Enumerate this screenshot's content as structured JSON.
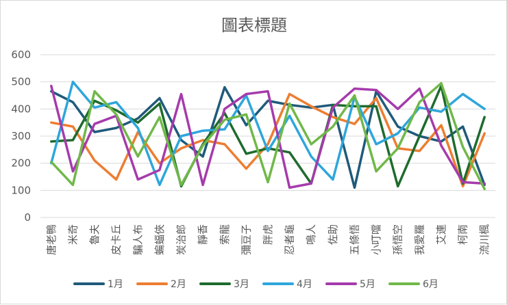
{
  "chart_data": {
    "type": "line",
    "title": "圖表標題",
    "xlabel": "",
    "ylabel": "",
    "ylim": [
      0,
      600
    ],
    "yticks": [
      0,
      100,
      200,
      300,
      400,
      500,
      600
    ],
    "grid": true,
    "legend_position": "bottom",
    "categories": [
      "唐老鴨",
      "米奇",
      "魯夫",
      "皮卡丘",
      "騙人布",
      "蝙蝠俠",
      "炭治郎",
      "靜香",
      "索龍",
      "彌豆子",
      "胖虎",
      "忍者龜",
      "鳴人",
      "佐助",
      "五條悟",
      "小叮噹",
      "孫悟空",
      "我愛羅",
      "艾連",
      "柯南",
      "流川楓"
    ],
    "series": [
      {
        "name": "1月",
        "color": "#1f5a7a",
        "values": [
          465,
          425,
          315,
          330,
          365,
          440,
          285,
          225,
          480,
          340,
          430,
          415,
          405,
          415,
          110,
          465,
          335,
          300,
          280,
          335,
          120
        ]
      },
      {
        "name": "2月",
        "color": "#ed7d31",
        "values": [
          350,
          335,
          210,
          140,
          315,
          200,
          255,
          285,
          270,
          180,
          270,
          455,
          410,
          370,
          345,
          440,
          255,
          245,
          340,
          115,
          310
        ]
      },
      {
        "name": "3月",
        "color": "#1e6b2e",
        "values": [
          280,
          285,
          430,
          395,
          350,
          420,
          115,
          270,
          385,
          235,
          255,
          240,
          125,
          415,
          410,
          410,
          115,
          300,
          485,
          125,
          370
        ]
      },
      {
        "name": "4月",
        "color": "#2ea6db",
        "values": [
          200,
          500,
          405,
          425,
          330,
          120,
          300,
          320,
          325,
          450,
          245,
          375,
          225,
          140,
          445,
          270,
          310,
          405,
          390,
          455,
          400
        ]
      },
      {
        "name": "5月",
        "color": "#a53bac",
        "values": [
          485,
          170,
          345,
          375,
          140,
          175,
          455,
          120,
          400,
          455,
          465,
          110,
          125,
          405,
          475,
          470,
          400,
          475,
          265,
          130,
          125
        ]
      },
      {
        "name": "6月",
        "color": "#70b849",
        "values": [
          205,
          120,
          465,
          380,
          225,
          370,
          120,
          265,
          360,
          380,
          130,
          420,
          270,
          335,
          450,
          170,
          255,
          425,
          495,
          260,
          105
        ]
      }
    ]
  }
}
